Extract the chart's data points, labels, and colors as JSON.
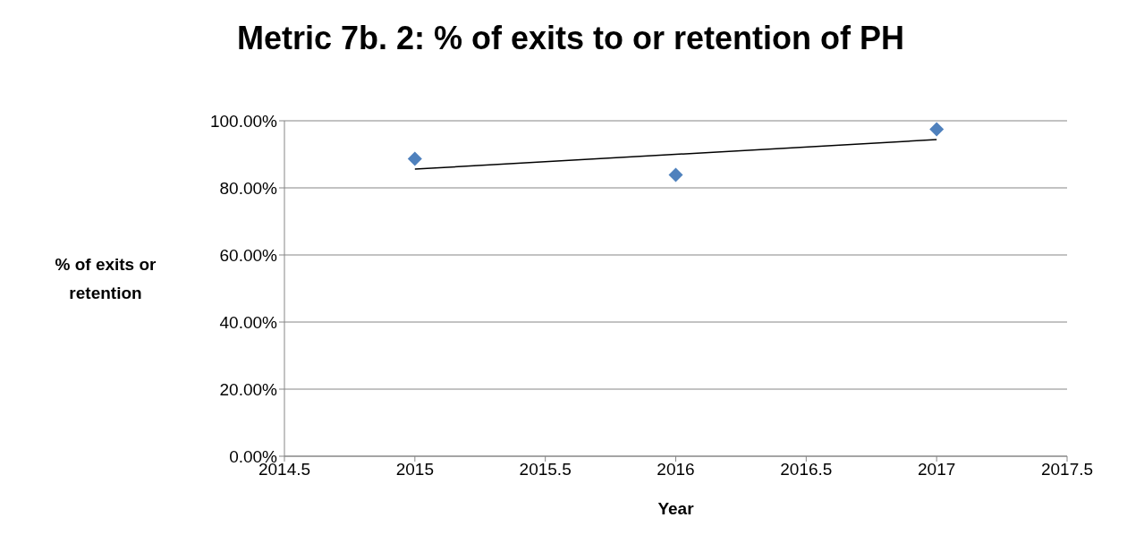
{
  "chart_data": {
    "type": "scatter",
    "title": "Metric 7b. 2: % of exits to or retention of PH",
    "xlabel": "Year",
    "ylabel": "% of exits or retention",
    "x": [
      2015,
      2016,
      2017
    ],
    "series": [
      {
        "color": "#4f81bd",
        "marker": "diamond",
        "values": [
          88.7,
          83.9,
          97.5
        ]
      },
      {
        "type": "line",
        "color": "#000000",
        "marker": "none",
        "line_style": "solid",
        "x": [
          2015,
          2017
        ],
        "values": [
          85.6,
          94.4
        ]
      }
    ],
    "xlim": [
      2014.5,
      2017.5
    ],
    "xticks": [
      2014.5,
      2015,
      2015.5,
      2016,
      2016.5,
      2017,
      2017.5
    ],
    "ylim": [
      0,
      100
    ],
    "yticks": [
      {
        "value": 0,
        "label": "0.00%"
      },
      {
        "value": 20,
        "label": "20.00%"
      },
      {
        "value": 40,
        "label": "40.00%"
      },
      {
        "value": 60,
        "label": "60.00%"
      },
      {
        "value": 80,
        "label": "80.00%"
      },
      {
        "value": 100,
        "label": "100.00%"
      }
    ],
    "grid": "y",
    "legend": false
  }
}
